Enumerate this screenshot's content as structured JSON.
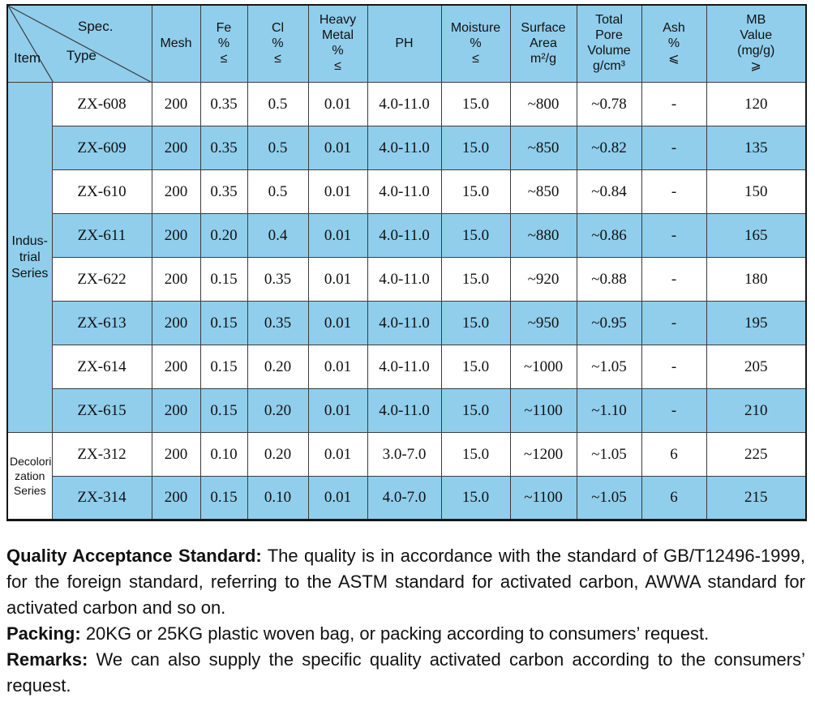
{
  "header": {
    "corner": {
      "spec": "Spec.",
      "type": "Type",
      "item": "Item"
    },
    "columns": [
      "Mesh",
      "Fe\n%\n≤",
      "Cl\n%\n≤",
      "Heavy\nMetal\n%\n≤",
      "PH",
      "Moisture\n%\n≤",
      "Surface\nArea\nm²/g",
      "Total\nPore\nVolume\ng/cm³",
      "Ash\n%\n⩽",
      "MB\nValue\n(mg/g)\n⩾"
    ]
  },
  "groups": [
    {
      "label": "Indus-\ntrial\nSeries",
      "shaded": true,
      "rows": [
        {
          "type": "ZX-608",
          "shaded": false,
          "values": [
            "200",
            "0.35",
            "0.5",
            "0.01",
            "4.0-11.0",
            "15.0",
            "~800",
            "~0.78",
            "-",
            "120"
          ]
        },
        {
          "type": "ZX-609",
          "shaded": true,
          "values": [
            "200",
            "0.35",
            "0.5",
            "0.01",
            "4.0-11.0",
            "15.0",
            "~850",
            "~0.82",
            "-",
            "135"
          ]
        },
        {
          "type": "ZX-610",
          "shaded": false,
          "values": [
            "200",
            "0.35",
            "0.5",
            "0.01",
            "4.0-11.0",
            "15.0",
            "~850",
            "~0.84",
            "-",
            "150"
          ]
        },
        {
          "type": "ZX-611",
          "shaded": true,
          "values": [
            "200",
            "0.20",
            "0.4",
            "0.01",
            "4.0-11.0",
            "15.0",
            "~880",
            "~0.86",
            "-",
            "165"
          ]
        },
        {
          "type": "ZX-622",
          "shaded": false,
          "values": [
            "200",
            "0.15",
            "0.35",
            "0.01",
            "4.0-11.0",
            "15.0",
            "~920",
            "~0.88",
            "-",
            "180"
          ]
        },
        {
          "type": "ZX-613",
          "shaded": true,
          "values": [
            "200",
            "0.15",
            "0.35",
            "0.01",
            "4.0-11.0",
            "15.0",
            "~950",
            "~0.95",
            "-",
            "195"
          ]
        },
        {
          "type": "ZX-614",
          "shaded": false,
          "values": [
            "200",
            "0.15",
            "0.20",
            "0.01",
            "4.0-11.0",
            "15.0",
            "~1000",
            "~1.05",
            "-",
            "205"
          ]
        },
        {
          "type": "ZX-615",
          "shaded": true,
          "values": [
            "200",
            "0.15",
            "0.20",
            "0.01",
            "4.0-11.0",
            "15.0",
            "~1100",
            "~1.10",
            "-",
            "210"
          ]
        }
      ]
    },
    {
      "label": "Decolori-\nzation\nSeries",
      "shaded": false,
      "rows": [
        {
          "type": "ZX-312",
          "shaded": false,
          "values": [
            "200",
            "0.10",
            "0.20",
            "0.01",
            "3.0-7.0",
            "15.0",
            "~1200",
            "~1.05",
            "6",
            "225"
          ]
        },
        {
          "type": "ZX-314",
          "shaded": true,
          "values": [
            "200",
            "0.15",
            "0.10",
            "0.01",
            "4.0-7.0",
            "15.0",
            "~1100",
            "~1.05",
            "6",
            "215"
          ]
        }
      ]
    }
  ],
  "notes": [
    {
      "label": "Quality Acceptance Standard:",
      "text": " The quality is in accordance with the standard of GB/T12496-1999, for the foreign standard, referring to the ASTM standard for activated carbon, AWWA standard for activated carbon and so on."
    },
    {
      "label": "Packing:",
      "text": " 20KG or 25KG plastic woven bag, or packing according to consumers’ request."
    },
    {
      "label": "Remarks:",
      "text": " We can also supply the specific quality activated carbon according to the consumers’ request."
    }
  ],
  "colors": {
    "row_blue": "#90ceec",
    "grid_line": "#3c3c3c",
    "outer_border": "#161616"
  }
}
